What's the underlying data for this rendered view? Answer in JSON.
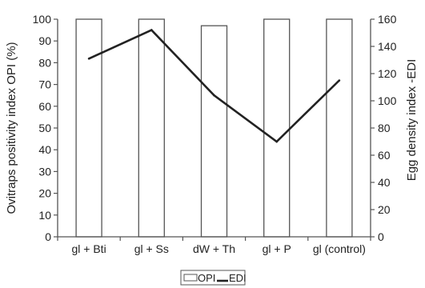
{
  "chart_data": {
    "type": "bar",
    "categories": [
      "gl + Bti",
      "gl + Ss",
      "dW + Th",
      "gl + P",
      "gl (control)"
    ],
    "series": [
      {
        "name": "OPI",
        "type": "bar",
        "axis": "left",
        "values": [
          100,
          100,
          97,
          100,
          100
        ]
      },
      {
        "name": "EDI",
        "type": "line",
        "axis": "right",
        "values": [
          131,
          152,
          104,
          70,
          115
        ]
      }
    ],
    "left_axis": {
      "label": "Ovitraps positivity index OPI (%)",
      "ylim": [
        0,
        100
      ],
      "ticks": [
        "0",
        "10",
        "20",
        "30",
        "40",
        "50",
        "60",
        "70",
        "80",
        "90",
        "100"
      ]
    },
    "right_axis": {
      "label": "Egg density index -EDI",
      "ylim": [
        0,
        160
      ],
      "ticks": [
        "0",
        "20",
        "40",
        "60",
        "80",
        "100",
        "120",
        "140",
        "160"
      ]
    },
    "legend": {
      "position": "bottom",
      "entries": [
        "OPI",
        "EDI"
      ]
    },
    "grid": false,
    "colors": {
      "bar_fill": "#ffffff",
      "bar_stroke": "#555555",
      "line": "#222222",
      "axis": "#555555"
    }
  }
}
